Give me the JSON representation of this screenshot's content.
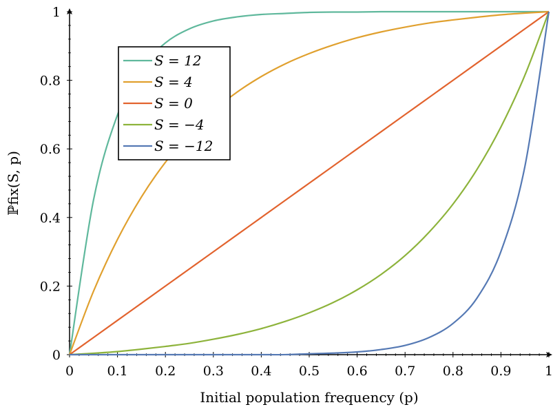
{
  "chart_data": {
    "type": "line",
    "xlabel": "Initial population frequency (p)",
    "ylabel": "ℙfix(S, p)",
    "xlim": [
      0,
      1
    ],
    "ylim": [
      0,
      1
    ],
    "xticks": [
      "0",
      "0.1",
      "0.2",
      "0.3",
      "0.4",
      "0.5",
      "0.6",
      "0.7",
      "0.8",
      "0.9",
      "1"
    ],
    "yticks": [
      "0",
      "0.2",
      "0.4",
      "0.6",
      "0.8",
      "1"
    ],
    "x": [
      0,
      0.05,
      0.1,
      0.15,
      0.2,
      0.25,
      0.3,
      0.35,
      0.4,
      0.45,
      0.5,
      0.55,
      0.6,
      0.65,
      0.7,
      0.75,
      0.8,
      0.85,
      0.9,
      0.95,
      1
    ],
    "series": [
      {
        "name": "S = 12",
        "color": "#5fb89c",
        "values": [
          0,
          0.451,
          0.699,
          0.835,
          0.909,
          0.95,
          0.973,
          0.985,
          0.992,
          0.995,
          0.998,
          0.999,
          0.999,
          1.0,
          1.0,
          1.0,
          1.0,
          1.0,
          1.0,
          1.0,
          1.0
        ]
      },
      {
        "name": "S = 4",
        "color": "#e0a02e",
        "values": [
          0,
          0.185,
          0.336,
          0.46,
          0.561,
          0.643,
          0.711,
          0.766,
          0.811,
          0.848,
          0.878,
          0.903,
          0.924,
          0.941,
          0.955,
          0.967,
          0.976,
          0.984,
          0.991,
          0.996,
          1.0
        ]
      },
      {
        "name": "S = 0",
        "color": "#e2632e",
        "values": [
          0,
          0.05,
          0.1,
          0.15,
          0.2,
          0.25,
          0.3,
          0.35,
          0.4,
          0.45,
          0.5,
          0.55,
          0.6,
          0.65,
          0.7,
          0.75,
          0.8,
          0.85,
          0.9,
          0.95,
          1
        ]
      },
      {
        "name": "S = −4",
        "color": "#8db33b",
        "values": [
          0,
          0.004,
          0.009,
          0.016,
          0.024,
          0.033,
          0.045,
          0.059,
          0.076,
          0.097,
          0.122,
          0.152,
          0.189,
          0.234,
          0.289,
          0.357,
          0.439,
          0.54,
          0.664,
          0.815,
          1.0
        ]
      },
      {
        "name": "S = −12",
        "color": "#5579b4",
        "values": [
          0,
          0,
          0,
          0,
          0,
          0,
          0,
          0,
          0,
          0.0001,
          0.0025,
          0.0045,
          0.008,
          0.015,
          0.027,
          0.05,
          0.091,
          0.165,
          0.301,
          0.549,
          1.0
        ]
      }
    ],
    "legend_position": "top-left",
    "grid": false
  }
}
